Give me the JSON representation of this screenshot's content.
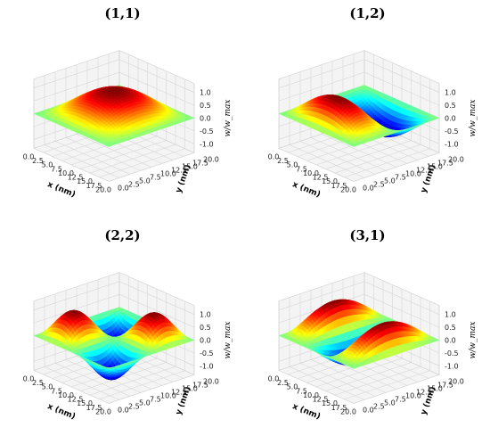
{
  "chart_data": [
    {
      "type": "surface",
      "title": "(1,1)",
      "mode": [
        1,
        1
      ],
      "xlabel": "x (nm)",
      "ylabel": "y (nm)",
      "zlabel": "w/w_max",
      "xlim": [
        0,
        20
      ],
      "ylim": [
        0,
        20
      ],
      "zlim": [
        -1,
        1
      ],
      "xticks": [
        "0.0",
        "2.5",
        "5.0",
        "7.5",
        "10.0",
        "12.5",
        "15.0",
        "17.5",
        "20.0"
      ],
      "yticks": [
        "0.0",
        "2.5",
        "5.0",
        "7.5",
        "10.0",
        "12.5",
        "15.0",
        "17.5",
        "20.0"
      ],
      "zticks": [
        "1.0",
        "0.5",
        "0.0",
        "-0.5",
        "-1.0"
      ],
      "colormap": "jet",
      "grid": true
    },
    {
      "type": "surface",
      "title": "(1,2)",
      "mode": [
        1,
        2
      ],
      "xlabel": "x (nm)",
      "ylabel": "y (nm)",
      "zlabel": "w/w_max",
      "xlim": [
        0,
        20
      ],
      "ylim": [
        0,
        20
      ],
      "zlim": [
        -1,
        1
      ],
      "xticks": [
        "0.0",
        "2.5",
        "5.0",
        "7.5",
        "10.0",
        "12.5",
        "15.0",
        "17.5",
        "20.0"
      ],
      "yticks": [
        "0.0",
        "2.5",
        "5.0",
        "7.5",
        "10.0",
        "12.5",
        "15.0",
        "17.5",
        "20.0"
      ],
      "zticks": [
        "1.0",
        "0.5",
        "0.0",
        "-0.5",
        "-1.0"
      ],
      "colormap": "jet",
      "grid": true
    },
    {
      "type": "surface",
      "title": "(2,2)",
      "mode": [
        2,
        2
      ],
      "xlabel": "x (nm)",
      "ylabel": "y (nm)",
      "zlabel": "w/w_max",
      "xlim": [
        0,
        20
      ],
      "ylim": [
        0,
        20
      ],
      "zlim": [
        -1,
        1
      ],
      "xticks": [
        "0.0",
        "2.5",
        "5.0",
        "7.5",
        "10.0",
        "12.5",
        "15.0",
        "17.5",
        "20.0"
      ],
      "yticks": [
        "0.0",
        "2.5",
        "5.0",
        "7.5",
        "10.0",
        "12.5",
        "15.0",
        "17.5",
        "20.0"
      ],
      "zticks": [
        "1.0",
        "0.5",
        "0.0",
        "-0.5",
        "-1.0"
      ],
      "colormap": "jet",
      "grid": true
    },
    {
      "type": "surface",
      "title": "(3,1)",
      "mode": [
        3,
        1
      ],
      "xlabel": "x (nm)",
      "ylabel": "y (nm)",
      "zlabel": "w/w_max",
      "xlim": [
        0,
        20
      ],
      "ylim": [
        0,
        20
      ],
      "zlim": [
        -1,
        1
      ],
      "xticks": [
        "0.0",
        "2.5",
        "5.0",
        "7.5",
        "10.0",
        "12.5",
        "15.0",
        "17.5",
        "20.0"
      ],
      "yticks": [
        "0.0",
        "2.5",
        "5.0",
        "7.5",
        "10.0",
        "12.5",
        "15.0",
        "17.5",
        "20.0"
      ],
      "zticks": [
        "1.0",
        "0.5",
        "0.0",
        "-0.5",
        "-1.0"
      ],
      "colormap": "jet",
      "grid": true
    }
  ]
}
